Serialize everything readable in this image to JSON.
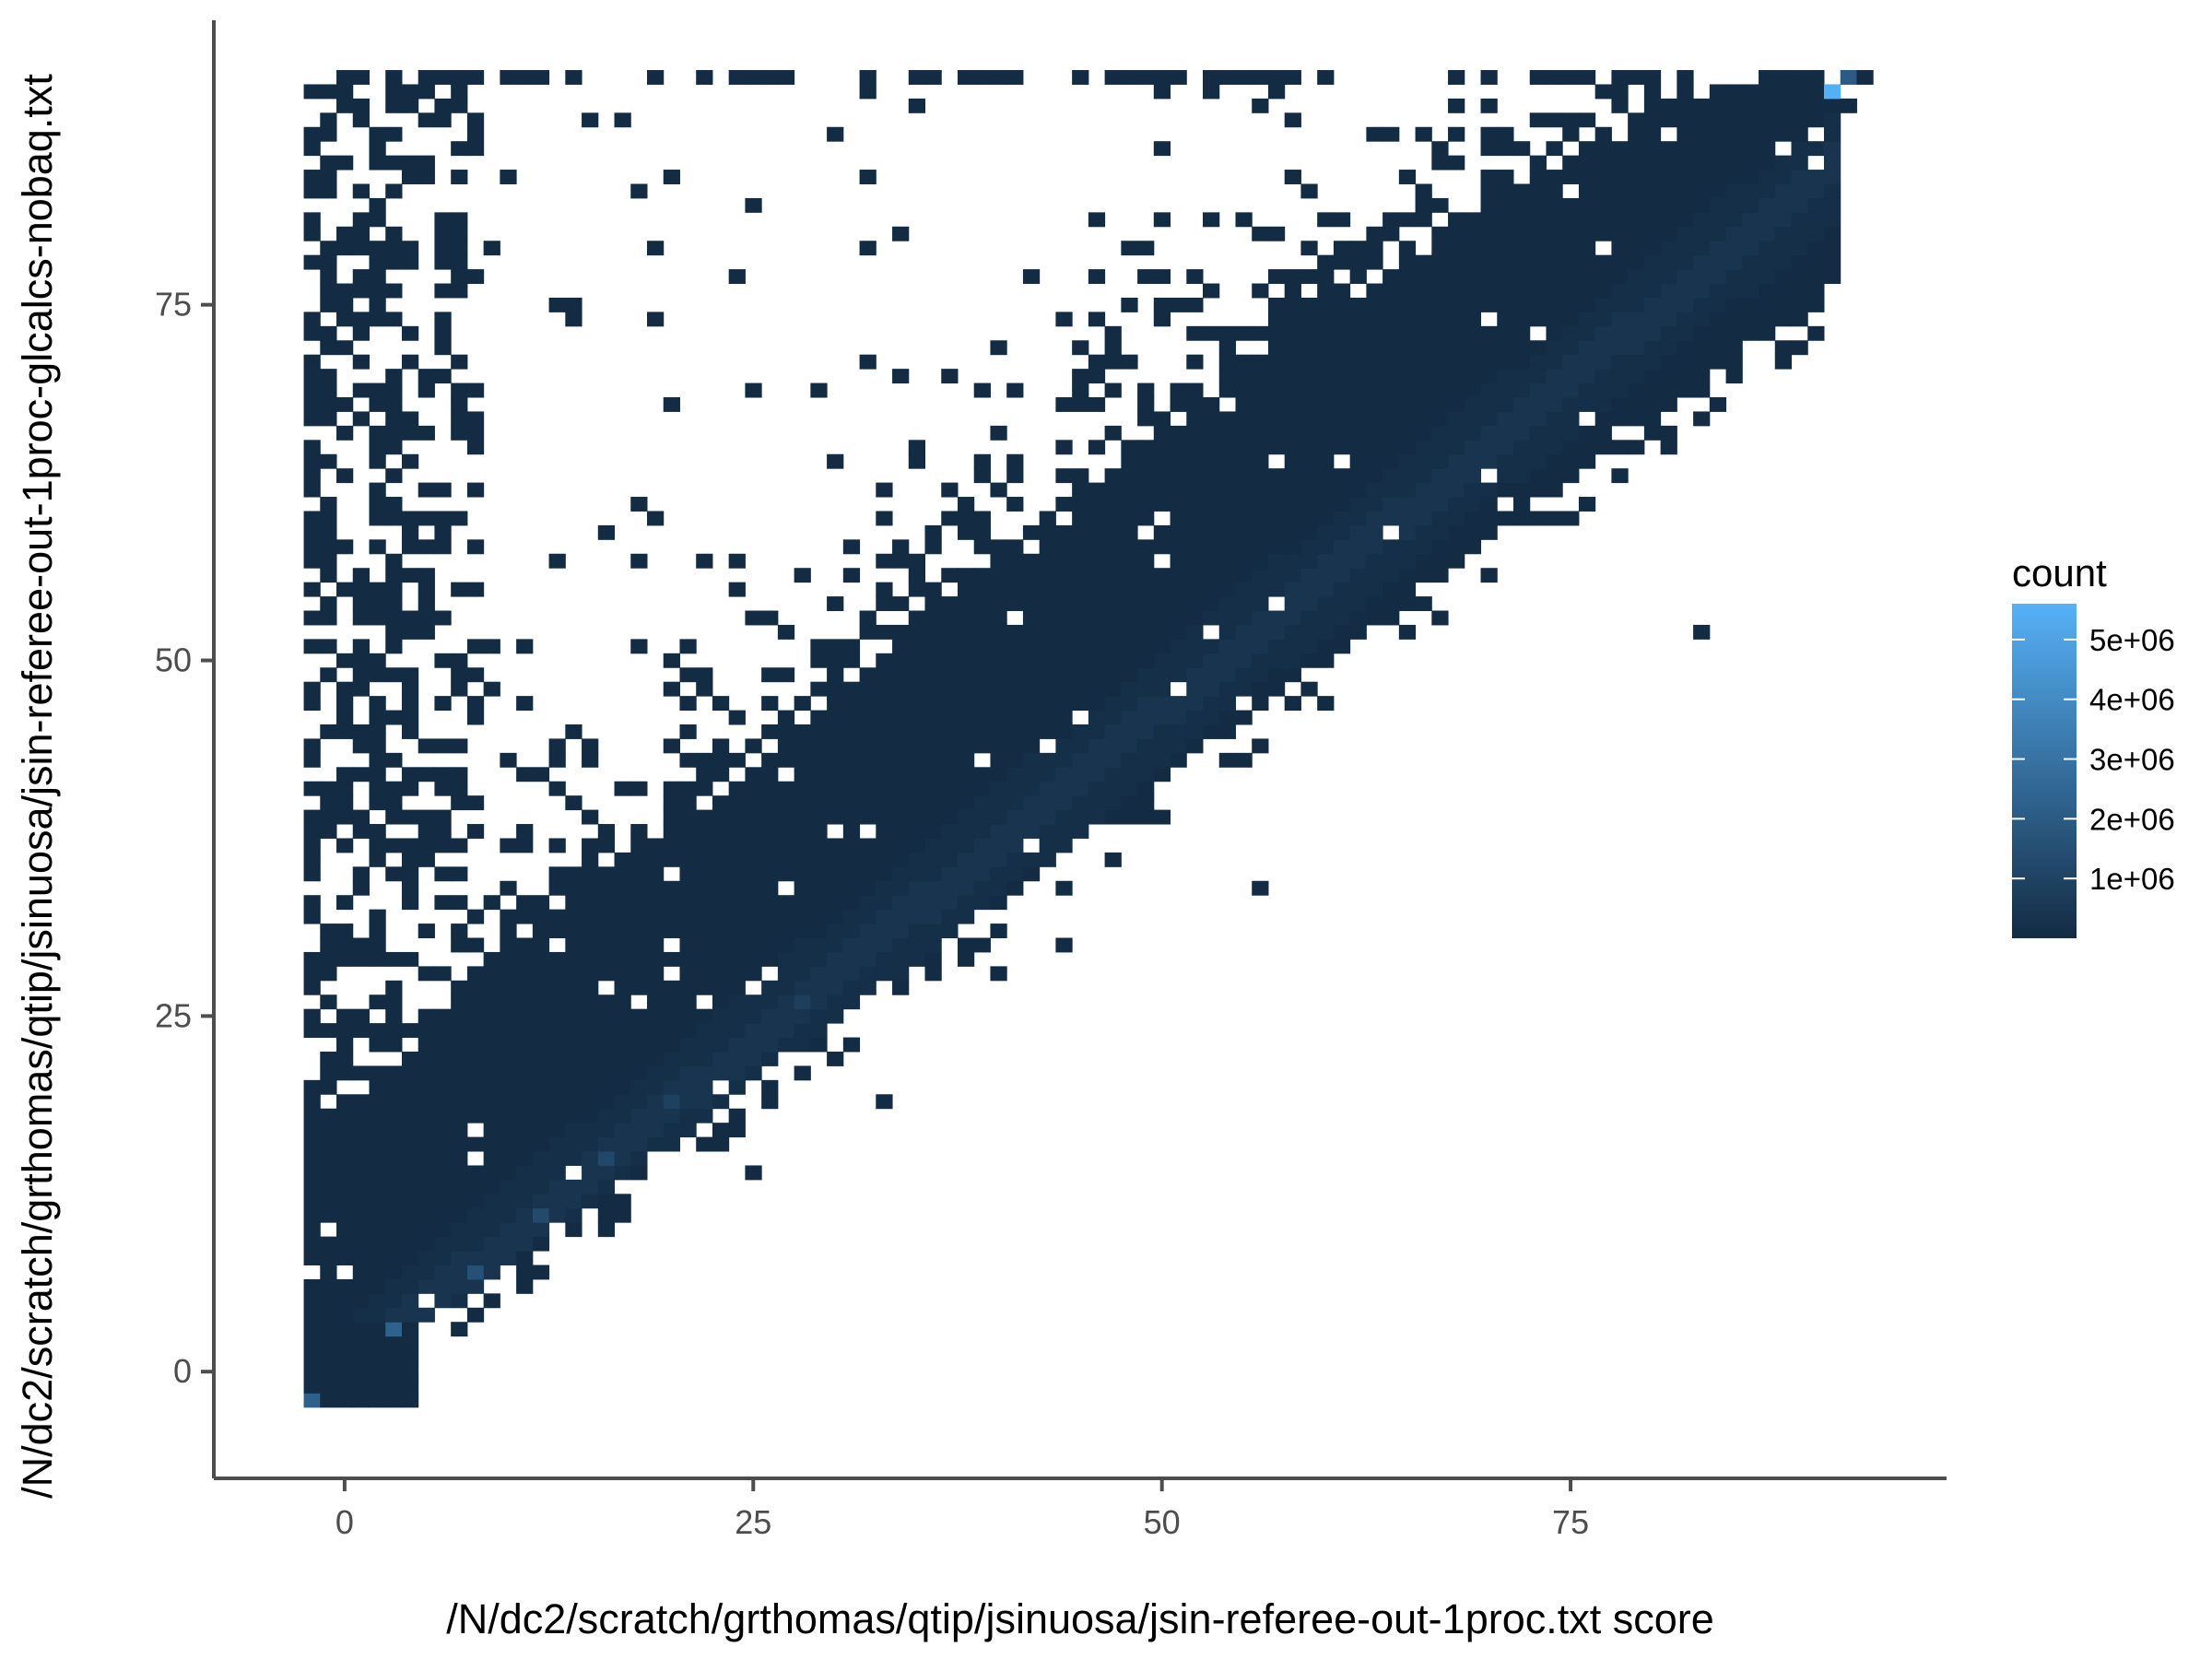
{
  "chart_data": {
    "type": "heatmap",
    "title": "",
    "xlabel": "/N/dc2/scratch/grthomas/qtip/jsinuosa/jsin-referee-out-1proc.txt score",
    "ylabel": "/N/dc2/scratch/grthomas/qtip/jsinuosa/jsin-referee-out-1proc-glcalcs-nobaq.txt",
    "xlim": [
      -8,
      98
    ],
    "ylim": [
      -7.5,
      95
    ],
    "x_ticks": [
      0,
      25,
      50,
      75
    ],
    "y_ticks": [
      0,
      25,
      50,
      75
    ],
    "x_tick_labels": [
      "0",
      "25",
      "50",
      "75"
    ],
    "y_tick_labels": [
      "0",
      "25",
      "50",
      "75"
    ],
    "grid": false,
    "bin_width": 1,
    "x_bin_range": [
      -2,
      93
    ],
    "y_bin_range": [
      -2,
      91
    ],
    "bulk_region": {
      "description_of_shape": "dense band between lower edge y ~= 0.85x and upper edge rising from ~15 at x=0 to 91 at x=85",
      "lower_edge_slope": 0.85,
      "upper_edge_points": [
        [
          0,
          18
        ],
        [
          10,
          30
        ],
        [
          20,
          38
        ],
        [
          30,
          47
        ],
        [
          40,
          58
        ],
        [
          50,
          66
        ],
        [
          60,
          74
        ],
        [
          70,
          82
        ],
        [
          80,
          88
        ],
        [
          85,
          91
        ]
      ]
    },
    "hot_cells": [
      {
        "x": 91,
        "y": 90,
        "count": 5500000
      },
      {
        "x": 92,
        "y": 91,
        "count": 2000000
      },
      {
        "x": -2,
        "y": -2,
        "count": 2200000
      },
      {
        "x": 3,
        "y": 3,
        "count": 2300000
      },
      {
        "x": 8,
        "y": 7,
        "count": 1600000
      },
      {
        "x": 12,
        "y": 11,
        "count": 1300000
      },
      {
        "x": 16,
        "y": 15,
        "count": 1200000
      },
      {
        "x": 20,
        "y": 19,
        "count": 900000
      },
      {
        "x": 28,
        "y": 26,
        "count": 800000
      }
    ],
    "outlier_cells": [
      [
        83,
        52
      ],
      [
        33,
        19
      ],
      [
        40,
        28
      ],
      [
        44,
        30
      ],
      [
        25,
        14
      ],
      [
        56,
        34
      ]
    ],
    "legend": {
      "title": "count",
      "placement": "right",
      "type": "colorbar",
      "range": [
        0,
        5600000
      ],
      "ticks": [
        1000000,
        2000000,
        3000000,
        4000000,
        5000000
      ],
      "tick_labels": [
        "1e+06",
        "2e+06",
        "3e+06",
        "4e+06",
        "5e+06"
      ],
      "low_color": "#132B43",
      "high_color": "#56B1F7"
    }
  }
}
